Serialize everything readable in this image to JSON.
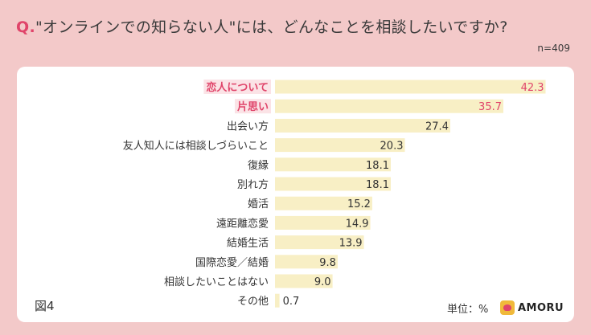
{
  "question": {
    "prefix": "Q.",
    "text": "\"オンラインでの知らない人\"には、どんなことを相談したいですか?"
  },
  "sample_size": "n=409",
  "figure_label": "図4",
  "unit_label": "単位：%",
  "logo_text": "AMORU",
  "colors": {
    "background": "#f3c9c9",
    "bar": "#f8efc5",
    "highlight_bg": "#fbe3e6",
    "highlight_text": "#e0446a",
    "text": "#333333"
  },
  "chart_data": {
    "type": "bar",
    "orientation": "horizontal",
    "categories": [
      "恋人について",
      "片思い",
      "出会い方",
      "友人知人には相談しづらいこと",
      "復縁",
      "別れ方",
      "婚活",
      "遠距離恋愛",
      "結婚生活",
      "国際恋愛／結婚",
      "相談したいことはない",
      "その他"
    ],
    "values": [
      42.3,
      35.7,
      27.4,
      20.3,
      18.1,
      18.1,
      15.2,
      14.9,
      13.9,
      9.8,
      9.0,
      0.7
    ],
    "value_labels": [
      "42.3",
      "35.7",
      "27.4",
      "20.3",
      "18.1",
      "18.1",
      "15.2",
      "14.9",
      "13.9",
      "9.8",
      "9.0",
      "0.7"
    ],
    "highlighted": [
      0,
      1
    ],
    "xlim": [
      0,
      45
    ],
    "grid": false,
    "legend": "none"
  }
}
